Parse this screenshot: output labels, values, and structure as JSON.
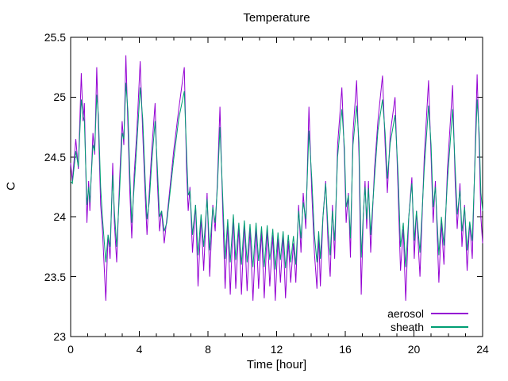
{
  "title": "Temperature",
  "axes": {
    "xlabel": "Time [hour]",
    "ylabel": "C",
    "x_major_ticks": [
      0,
      4,
      8,
      12,
      16,
      20,
      24
    ],
    "x_minor_step": 1,
    "y_major_ticks": [
      23,
      23.5,
      24,
      24.5,
      25,
      25.5
    ],
    "xlim": [
      0,
      24
    ],
    "ylim": [
      23,
      25.5
    ]
  },
  "legend": {
    "items": [
      {
        "label": "aerosol",
        "color": "#9400d3"
      },
      {
        "label": "sheath",
        "color": "#009e73"
      }
    ],
    "position": "bottom-right"
  },
  "colors": {
    "aerosol": "#9400d3",
    "sheath": "#009e73",
    "axis": "#000000",
    "background": "#ffffff"
  },
  "chart_data": {
    "type": "line",
    "title": "Temperature",
    "xlabel": "Time [hour]",
    "ylabel": "C",
    "xlim": [
      0,
      24
    ],
    "ylim": [
      23,
      25.5
    ],
    "grid": false,
    "legend_position": "bottom-right",
    "x": [
      0.0,
      0.1,
      0.3,
      0.45,
      0.62,
      0.72,
      0.8,
      0.95,
      1.05,
      1.12,
      1.3,
      1.4,
      1.52,
      1.62,
      1.75,
      1.85,
      2.05,
      2.18,
      2.3,
      2.45,
      2.55,
      2.68,
      2.85,
      3.0,
      3.1,
      3.22,
      3.34,
      3.45,
      3.56,
      3.7,
      3.85,
      4.05,
      4.2,
      4.35,
      4.45,
      4.58,
      4.72,
      4.92,
      5.05,
      5.18,
      5.3,
      5.45,
      5.6,
      6.0,
      6.3,
      6.62,
      6.75,
      6.85,
      6.95,
      7.1,
      7.28,
      7.42,
      7.6,
      7.75,
      7.95,
      8.1,
      8.28,
      8.42,
      8.55,
      8.7,
      8.85,
      9.0,
      9.15,
      9.3,
      9.48,
      9.62,
      9.8,
      9.95,
      10.12,
      10.28,
      10.45,
      10.62,
      10.8,
      10.95,
      11.12,
      11.28,
      11.45,
      11.6,
      11.78,
      11.92,
      12.08,
      12.22,
      12.38,
      12.52,
      12.68,
      12.82,
      12.98,
      13.12,
      13.28,
      13.42,
      13.55,
      13.7,
      13.88,
      14.05,
      14.2,
      14.35,
      14.45,
      14.55,
      14.7,
      14.86,
      15.0,
      15.12,
      15.25,
      15.38,
      15.55,
      15.8,
      15.95,
      16.05,
      16.18,
      16.3,
      16.45,
      16.66,
      16.8,
      16.93,
      17.05,
      17.15,
      17.25,
      17.35,
      17.48,
      17.7,
      17.9,
      18.17,
      18.32,
      18.45,
      18.62,
      18.9,
      19.08,
      19.22,
      19.38,
      19.52,
      19.7,
      19.88,
      20.02,
      20.15,
      20.35,
      20.6,
      20.85,
      21.0,
      21.12,
      21.25,
      21.45,
      21.6,
      21.75,
      21.95,
      22.25,
      22.4,
      22.52,
      22.68,
      22.8,
      22.95,
      23.1,
      23.25,
      23.4,
      23.68,
      23.8,
      23.9,
      24.0
    ],
    "series": [
      {
        "name": "aerosol",
        "color": "#9400d3",
        "values": [
          24.45,
          24.3,
          24.65,
          24.4,
          25.2,
          24.8,
          24.95,
          23.95,
          24.3,
          24.05,
          24.7,
          24.52,
          25.25,
          24.75,
          24.1,
          23.9,
          23.3,
          23.85,
          23.65,
          24.45,
          23.95,
          23.62,
          24.3,
          24.8,
          24.6,
          25.35,
          24.75,
          24.2,
          23.82,
          24.35,
          24.7,
          25.3,
          24.7,
          24.15,
          23.85,
          24.2,
          24.55,
          24.95,
          24.3,
          23.88,
          24.05,
          23.78,
          23.98,
          24.55,
          24.9,
          25.25,
          24.4,
          24.05,
          24.25,
          23.7,
          24.1,
          23.42,
          24.0,
          23.55,
          24.2,
          23.5,
          24.1,
          23.88,
          24.3,
          24.92,
          24.1,
          23.4,
          23.95,
          23.35,
          24.0,
          23.4,
          23.92,
          23.35,
          23.95,
          23.38,
          23.9,
          23.3,
          23.92,
          23.4,
          23.88,
          23.32,
          23.9,
          23.42,
          23.85,
          23.3,
          23.82,
          23.45,
          23.85,
          23.32,
          23.8,
          23.45,
          23.78,
          23.45,
          24.1,
          23.7,
          24.2,
          23.9,
          24.92,
          24.2,
          23.7,
          23.4,
          23.85,
          23.42,
          24.0,
          24.3,
          23.75,
          23.5,
          24.1,
          23.65,
          24.6,
          25.08,
          24.5,
          23.95,
          24.2,
          23.66,
          24.7,
          25.14,
          24.5,
          23.35,
          24.0,
          24.3,
          23.9,
          24.3,
          23.7,
          24.4,
          24.8,
          25.18,
          24.6,
          24.2,
          24.7,
          25.0,
          24.2,
          23.55,
          23.9,
          23.3,
          24.0,
          24.33,
          23.65,
          24.05,
          23.5,
          24.5,
          25.14,
          24.5,
          23.95,
          24.3,
          23.45,
          23.95,
          23.6,
          24.4,
          25.1,
          24.3,
          23.9,
          24.28,
          23.75,
          24.1,
          23.55,
          23.95,
          23.65,
          25.19,
          24.6,
          24.0,
          23.78
        ]
      },
      {
        "name": "sheath",
        "color": "#009e73",
        "values": [
          24.3,
          24.28,
          24.55,
          24.42,
          24.98,
          24.85,
          24.8,
          24.1,
          24.25,
          24.12,
          24.6,
          24.55,
          25.02,
          24.85,
          24.25,
          24.0,
          23.62,
          23.85,
          23.75,
          24.35,
          24.05,
          23.75,
          24.2,
          24.7,
          24.65,
          25.12,
          24.88,
          24.35,
          23.95,
          24.25,
          24.6,
          25.08,
          24.82,
          24.28,
          23.98,
          24.12,
          24.45,
          24.8,
          24.42,
          24.0,
          24.05,
          23.88,
          23.95,
          24.48,
          24.82,
          25.05,
          24.55,
          24.18,
          24.22,
          23.85,
          24.1,
          23.68,
          24.02,
          23.75,
          24.15,
          23.72,
          24.08,
          23.95,
          24.25,
          24.75,
          24.2,
          23.65,
          23.98,
          23.62,
          24.02,
          23.64,
          23.95,
          23.6,
          23.97,
          23.62,
          23.94,
          23.58,
          23.95,
          23.63,
          23.92,
          23.58,
          23.93,
          23.64,
          23.9,
          23.56,
          23.87,
          23.64,
          23.88,
          23.57,
          23.85,
          23.62,
          23.84,
          23.6,
          24.05,
          23.82,
          24.12,
          23.98,
          24.72,
          24.32,
          23.85,
          23.62,
          23.88,
          23.65,
          24.0,
          24.28,
          23.88,
          23.68,
          24.05,
          23.8,
          24.5,
          24.9,
          24.58,
          24.08,
          24.18,
          23.82,
          24.6,
          24.93,
          24.62,
          23.66,
          24.02,
          24.25,
          23.98,
          24.24,
          23.85,
          24.32,
          24.72,
          24.98,
          24.7,
          24.32,
          24.62,
          24.85,
          24.35,
          23.75,
          23.95,
          23.58,
          24.0,
          24.28,
          23.8,
          24.05,
          23.7,
          24.4,
          24.93,
          24.6,
          24.08,
          24.25,
          23.68,
          24.0,
          23.76,
          24.3,
          24.9,
          24.42,
          24.02,
          24.22,
          23.88,
          24.08,
          23.72,
          23.96,
          23.8,
          24.98,
          24.7,
          24.2,
          24.05
        ]
      }
    ]
  }
}
